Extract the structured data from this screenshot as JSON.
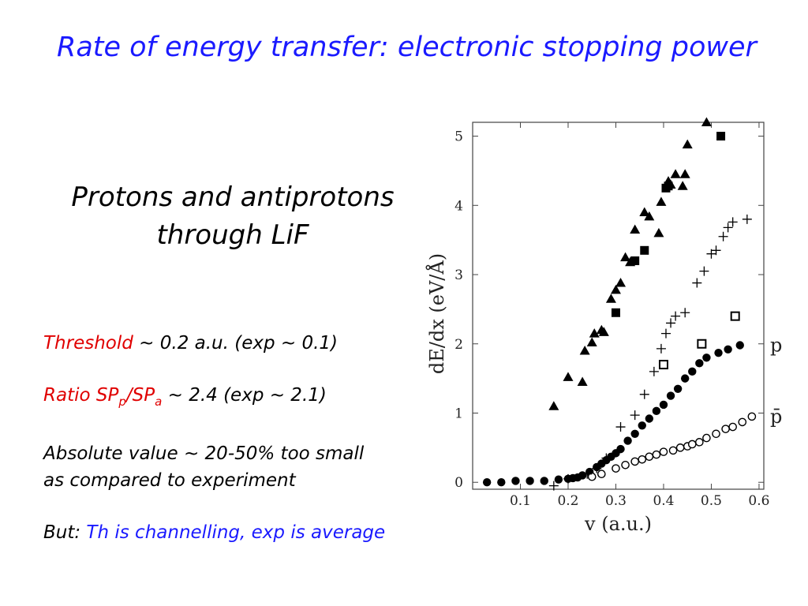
{
  "slide": {
    "title": "Rate of energy transfer: electronic stopping power",
    "subtitle_line1": "Protons and antiprotons",
    "subtitle_line2": "through LiF",
    "threshold_label": "Threshold",
    "threshold_text": " ~ 0.2 a.u. (exp ~ 0.1)",
    "ratio_label": "Ratio SP",
    "ratio_sub_p": "p",
    "ratio_slash": "/SP",
    "ratio_sub_a": "a",
    "ratio_text": " ~ 2.4 (exp ~ 2.1)",
    "absolute_line1": "Absolute value ~ 20-50% too small",
    "absolute_line2": "as compared to experiment",
    "but_label": "But:",
    "but_text": " Th is channelling, exp is average"
  },
  "chart_data": {
    "type": "scatter",
    "xlabel": "v (a.u.)",
    "ylabel": "dE/dx (eV/Å)",
    "xlim": [
      0,
      0.61
    ],
    "ylim": [
      -0.1,
      5.2
    ],
    "xticks": [
      0.1,
      0.2,
      0.3,
      0.4,
      0.5,
      0.6
    ],
    "xtick_labels": [
      "0.1",
      "0.2",
      "0.3",
      "0.4",
      "0.5",
      "0.6"
    ],
    "yticks": [
      0,
      1,
      2,
      3,
      4,
      5
    ],
    "ytick_labels": [
      "0",
      "1",
      "2",
      "3",
      "4",
      "5"
    ],
    "grid": false,
    "series": [
      {
        "marker": "filled-circle",
        "label": "p",
        "x": [
          0.03,
          0.06,
          0.09,
          0.12,
          0.15,
          0.18,
          0.2,
          0.21,
          0.22,
          0.23,
          0.245,
          0.26,
          0.27,
          0.28,
          0.29,
          0.3,
          0.31,
          0.325,
          0.34,
          0.355,
          0.37,
          0.385,
          0.4,
          0.415,
          0.43,
          0.445,
          0.46,
          0.475,
          0.49,
          0.515,
          0.535,
          0.56
        ],
        "y": [
          0.0,
          0.0,
          0.02,
          0.02,
          0.02,
          0.04,
          0.05,
          0.06,
          0.07,
          0.1,
          0.15,
          0.22,
          0.27,
          0.32,
          0.37,
          0.42,
          0.48,
          0.6,
          0.7,
          0.82,
          0.92,
          1.03,
          1.12,
          1.25,
          1.35,
          1.5,
          1.6,
          1.72,
          1.8,
          1.87,
          1.92,
          1.98
        ]
      },
      {
        "marker": "open-circle",
        "label": "p̄",
        "x": [
          0.25,
          0.27,
          0.3,
          0.32,
          0.34,
          0.355,
          0.37,
          0.385,
          0.4,
          0.42,
          0.435,
          0.45,
          0.46,
          0.475,
          0.49,
          0.51,
          0.53,
          0.545,
          0.565,
          0.585
        ],
        "y": [
          0.08,
          0.12,
          0.2,
          0.25,
          0.3,
          0.33,
          0.37,
          0.4,
          0.44,
          0.46,
          0.5,
          0.52,
          0.55,
          0.58,
          0.64,
          0.7,
          0.77,
          0.8,
          0.87,
          0.95
        ]
      },
      {
        "marker": "plus",
        "x": [
          0.17,
          0.2,
          0.24,
          0.26,
          0.28,
          0.31,
          0.34,
          0.36,
          0.38,
          0.395,
          0.405,
          0.415,
          0.425,
          0.445,
          0.47,
          0.485,
          0.5,
          0.51,
          0.525,
          0.535,
          0.545,
          0.575
        ],
        "y": [
          -0.05,
          0.05,
          0.12,
          0.2,
          0.35,
          0.8,
          0.97,
          1.27,
          1.6,
          1.93,
          2.15,
          2.3,
          2.4,
          2.45,
          2.88,
          3.05,
          3.3,
          3.35,
          3.55,
          3.68,
          3.76,
          3.8
        ]
      },
      {
        "marker": "filled-triangle",
        "x": [
          0.17,
          0.2,
          0.23,
          0.235,
          0.25,
          0.255,
          0.27,
          0.275,
          0.29,
          0.3,
          0.31,
          0.32,
          0.33,
          0.34,
          0.36,
          0.37,
          0.39,
          0.395,
          0.41,
          0.415,
          0.425,
          0.44,
          0.445,
          0.45,
          0.49
        ],
        "y": [
          1.1,
          1.52,
          1.45,
          1.9,
          2.02,
          2.15,
          2.2,
          2.17,
          2.65,
          2.78,
          2.88,
          3.25,
          3.18,
          3.65,
          3.9,
          3.84,
          3.6,
          4.05,
          4.35,
          4.3,
          4.45,
          4.28,
          4.45,
          4.88,
          5.2
        ]
      },
      {
        "marker": "filled-square",
        "x": [
          0.3,
          0.34,
          0.36,
          0.405,
          0.41,
          0.52
        ],
        "y": [
          2.45,
          3.2,
          3.35,
          4.25,
          4.28,
          5.0
        ]
      },
      {
        "marker": "open-square",
        "x": [
          0.4,
          0.48,
          0.55
        ],
        "y": [
          1.7,
          2.0,
          2.4
        ]
      }
    ]
  }
}
